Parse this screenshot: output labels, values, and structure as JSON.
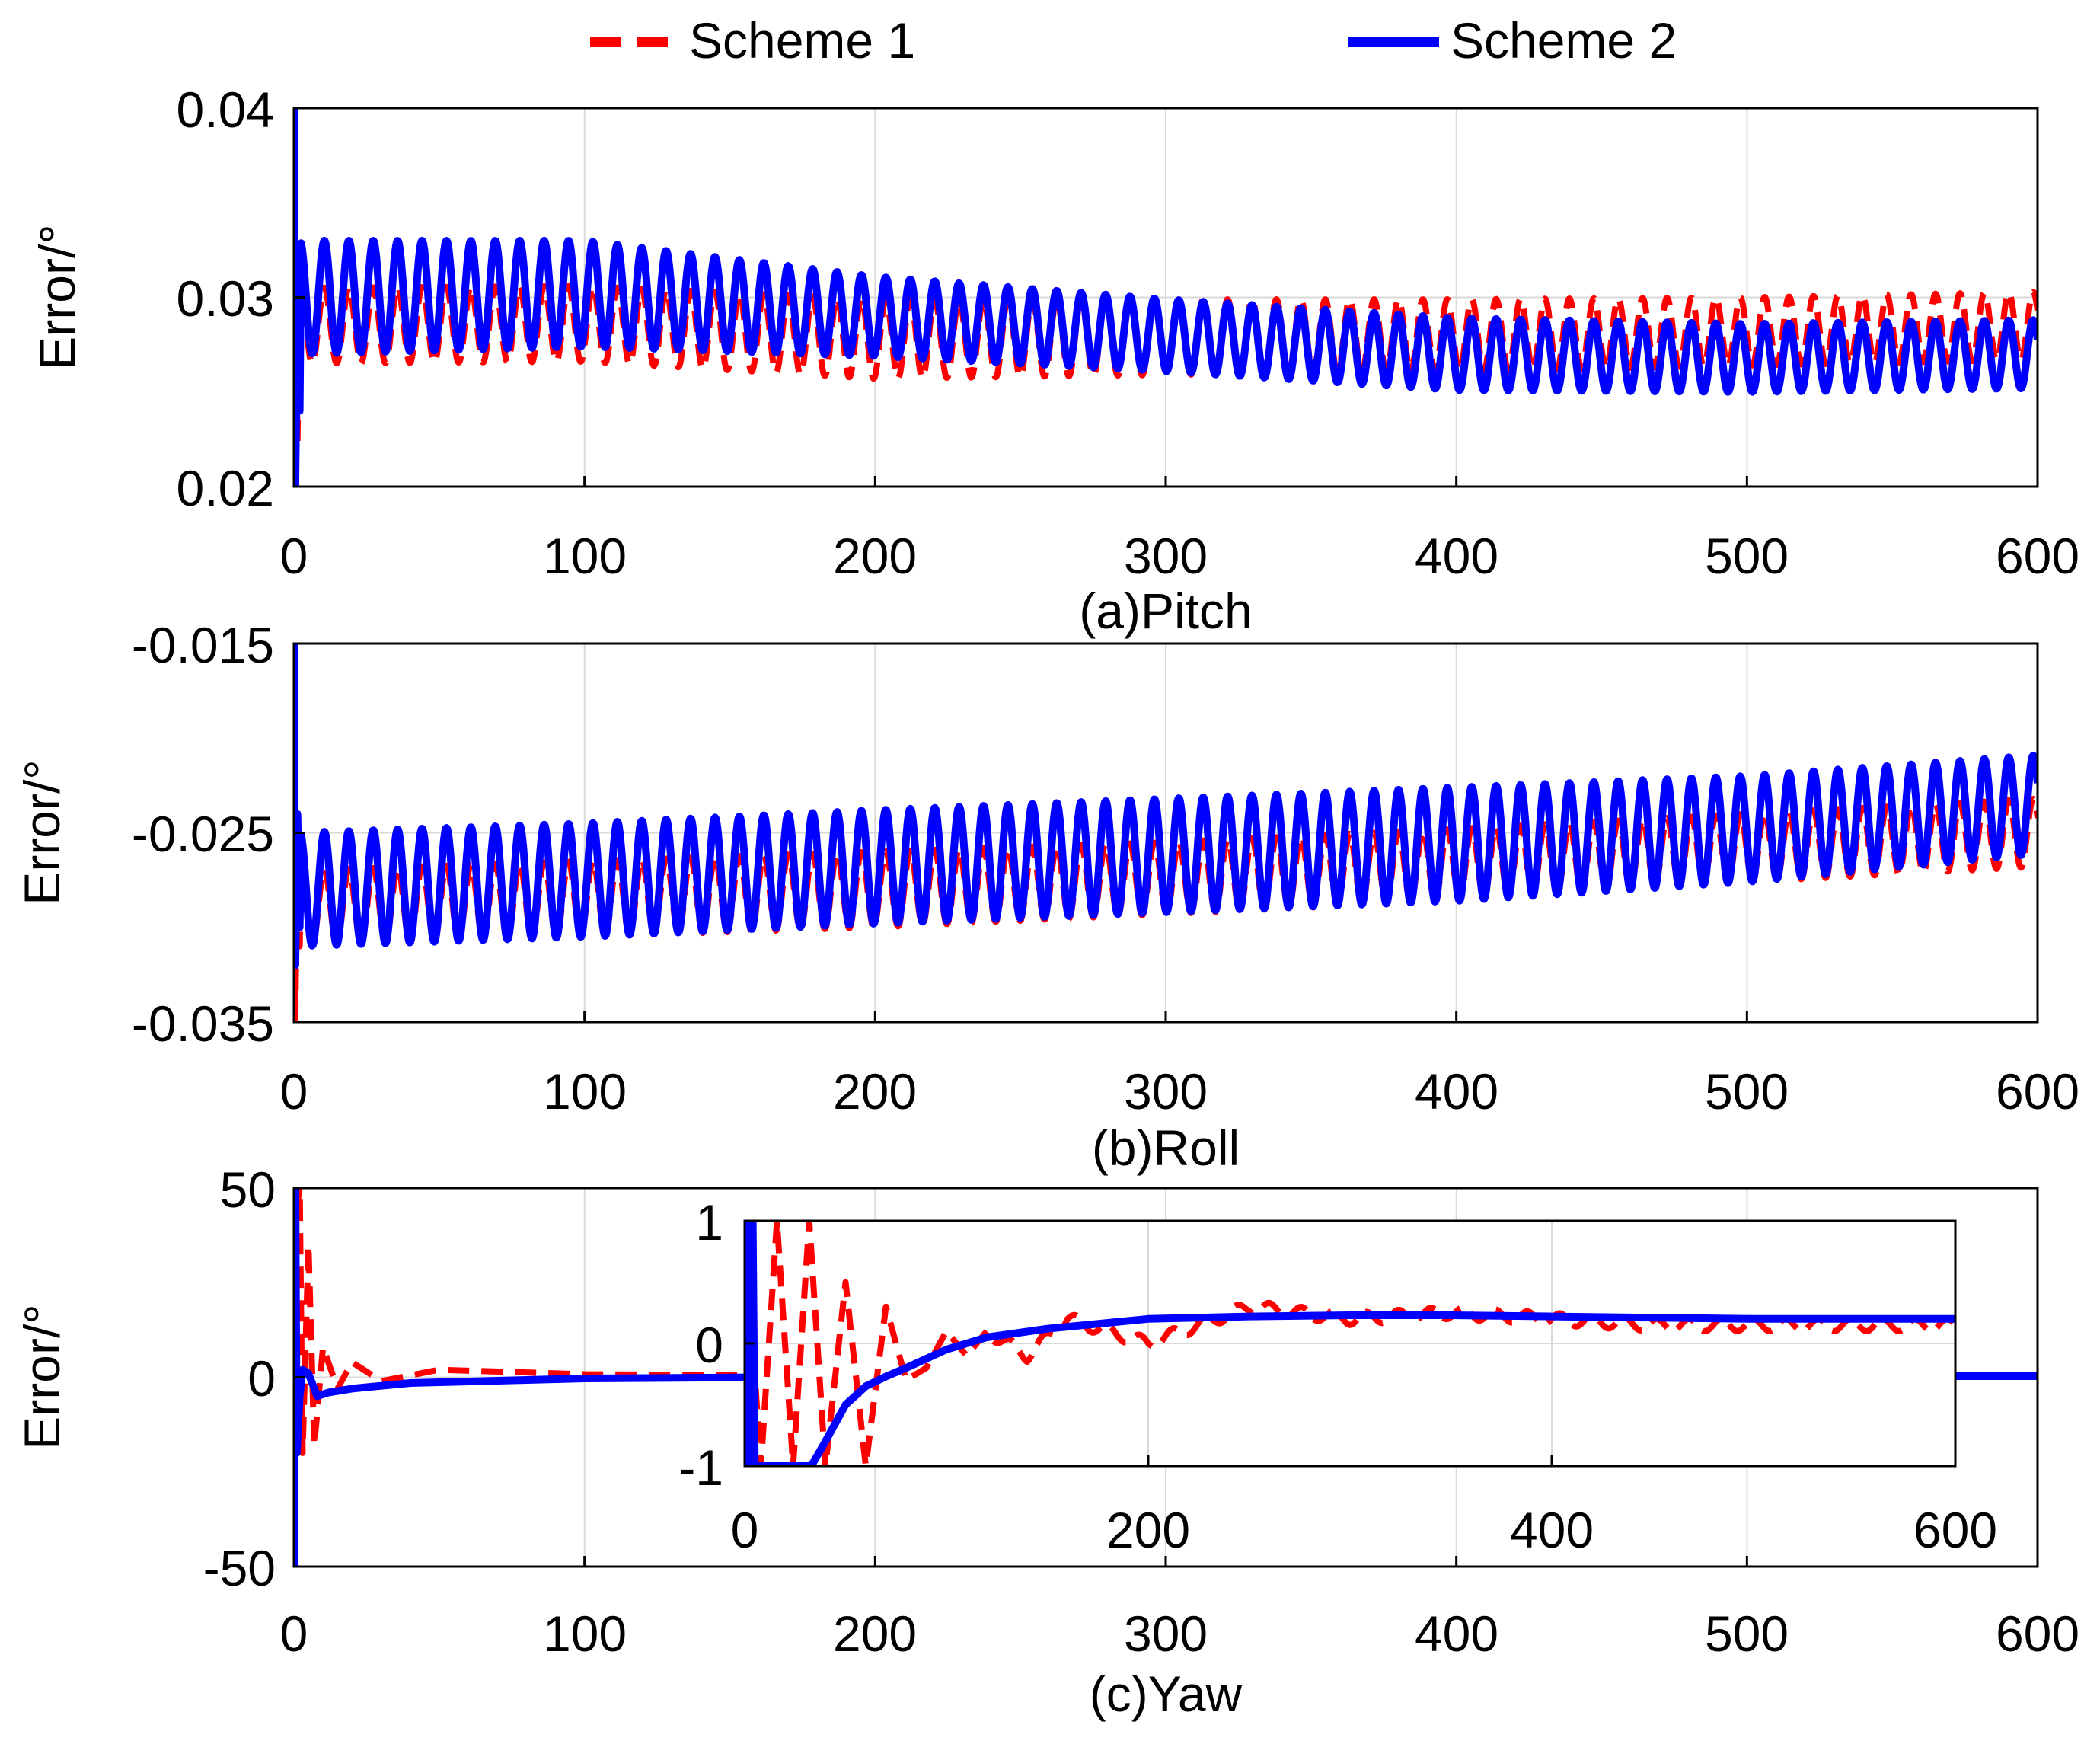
{
  "legend": [
    {
      "label": "Scheme 1",
      "color": "#ff0000",
      "style": "dashed"
    },
    {
      "label": "Scheme 2",
      "color": "#0000ff",
      "style": "solid"
    }
  ],
  "chart_data": [
    {
      "type": "line",
      "panel": "pitch",
      "title": "(a)Pitch",
      "xlabel": "",
      "ylabel": "Error/°",
      "xlim": [
        0,
        600
      ],
      "ylim": [
        0.02,
        0.04
      ],
      "xticks": [
        0,
        100,
        200,
        300,
        400,
        500,
        600
      ],
      "xtick_labels": [
        "0",
        "100",
        "200",
        "300",
        "400",
        "500",
        "600"
      ],
      "yticks": [
        0.02,
        0.03,
        0.04
      ],
      "ytick_labels": [
        "0.02",
        "0.03",
        "0.04"
      ],
      "grid": true,
      "note": "Dense oscillatory error traces; each series is summarised by its centre level and oscillation amplitude at x = 0, 100, ..., 600, plus a short initial transient.",
      "series": [
        {
          "name": "Scheme 1",
          "color": "#ff0000",
          "style": "dashed",
          "x": [
            0,
            100,
            200,
            300,
            400,
            500,
            600
          ],
          "center": [
            0.0285,
            0.0286,
            0.0278,
            0.0279,
            0.028,
            0.0282,
            0.0285
          ],
          "amplitude": [
            0.002,
            0.002,
            0.0021,
            0.002,
            0.0019,
            0.0018,
            0.0018
          ],
          "start": [
            0.021,
            0.033,
            0.0222,
            0.03
          ]
        },
        {
          "name": "Scheme 2",
          "color": "#0000ff",
          "style": "solid",
          "x": [
            0,
            100,
            200,
            300,
            400,
            500,
            600
          ],
          "center": [
            0.03,
            0.0302,
            0.029,
            0.028,
            0.027,
            0.0268,
            0.027
          ],
          "amplitude": [
            0.003,
            0.0028,
            0.0021,
            0.0019,
            0.0019,
            0.0018,
            0.0018
          ],
          "start": [
            0.04,
            0.02,
            0.03,
            0.024
          ]
        }
      ]
    },
    {
      "type": "line",
      "panel": "roll",
      "title": "(b)Roll",
      "xlabel": "",
      "ylabel": "Error/°",
      "xlim": [
        0,
        600
      ],
      "ylim": [
        -0.035,
        -0.015
      ],
      "xticks": [
        0,
        100,
        200,
        300,
        400,
        500,
        600
      ],
      "xtick_labels": [
        "0",
        "100",
        "200",
        "300",
        "400",
        "500",
        "600"
      ],
      "yticks": [
        -0.035,
        -0.025,
        -0.015
      ],
      "ytick_labels": [
        "-0.035",
        "-0.025",
        "-0.015"
      ],
      "grid": true,
      "series": [
        {
          "name": "Scheme 1",
          "color": "#ff0000",
          "style": "dashed",
          "x": [
            0,
            100,
            200,
            300,
            400,
            500,
            600
          ],
          "center": [
            -0.029,
            -0.0285,
            -0.028,
            -0.0274,
            -0.0267,
            -0.0258,
            -0.025
          ],
          "amplitude": [
            0.002,
            0.002,
            0.002,
            0.0019,
            0.0019,
            0.0018,
            0.0018
          ],
          "start": [
            -0.019,
            -0.035,
            -0.024,
            -0.031
          ]
        },
        {
          "name": "Scheme 2",
          "color": "#0000ff",
          "style": "solid",
          "x": [
            0,
            100,
            200,
            300,
            400,
            500,
            600
          ],
          "center": [
            -0.028,
            -0.0275,
            -0.0268,
            -0.0262,
            -0.0256,
            -0.0248,
            -0.0235
          ],
          "amplitude": [
            0.003,
            0.003,
            0.003,
            0.003,
            0.003,
            0.0028,
            0.0026
          ],
          "start": [
            -0.015,
            -0.032,
            -0.024,
            -0.03
          ]
        }
      ]
    },
    {
      "type": "line",
      "panel": "yaw",
      "title": "(c)Yaw",
      "xlabel": "",
      "ylabel": "Error/°",
      "xlim": [
        0,
        600
      ],
      "ylim": [
        -50,
        50
      ],
      "xticks": [
        0,
        100,
        200,
        300,
        400,
        500,
        600
      ],
      "xtick_labels": [
        "0",
        "100",
        "200",
        "300",
        "400",
        "500",
        "600"
      ],
      "yticks": [
        -50,
        0,
        50
      ],
      "ytick_labels": [
        "-50",
        "0",
        "50"
      ],
      "grid": true,
      "series": [
        {
          "name": "Scheme 1",
          "color": "#ff0000",
          "style": "dashed",
          "x": [
            0,
            1,
            2,
            3,
            5,
            7,
            10,
            15,
            20,
            30,
            50,
            100,
            150,
            200,
            300,
            400,
            500,
            600
          ],
          "y": [
            0,
            45,
            50,
            -20,
            35,
            -18,
            8,
            -3,
            4,
            -1,
            2,
            0.8,
            0.6,
            0.5,
            0.4,
            0.2,
            0.2,
            0.2
          ]
        },
        {
          "name": "Scheme 2",
          "color": "#0000ff",
          "style": "solid",
          "x": [
            0,
            0.5,
            1,
            2,
            3,
            5,
            8,
            12,
            20,
            40,
            100,
            200,
            300,
            400,
            500,
            600
          ],
          "y": [
            -50,
            50,
            -20,
            -5,
            2,
            1,
            -5,
            -4,
            -3,
            -1.5,
            -0.3,
            0.2,
            0.3,
            0.3,
            0.3,
            0.3
          ]
        }
      ],
      "inset": {
        "xlim": [
          0,
          600
        ],
        "ylim": [
          -1,
          1
        ],
        "xticks": [
          0,
          200,
          400,
          600
        ],
        "xtick_labels": [
          "0",
          "200",
          "400",
          "600"
        ],
        "yticks": [
          -1,
          0,
          1
        ],
        "ytick_labels": [
          "-1",
          "0",
          "1"
        ],
        "grid": true,
        "series": [
          {
            "name": "Scheme 1",
            "color": "#ff0000",
            "style": "dashed",
            "x": [
              0,
              8,
              16,
              24,
              32,
              40,
              50,
              60,
              70,
              80,
              90,
              100,
              110,
              120,
              140,
              160,
              200,
              250,
              300,
              350,
              400,
              450,
              500,
              550,
              600
            ],
            "y": [
              1,
              -1,
              1,
              -1,
              1,
              -1,
              0.5,
              -1,
              0.3,
              -0.3,
              -0.2,
              0.1,
              -0.1,
              0.1,
              -0.1,
              0.2,
              0.0,
              0.3,
              0.2,
              0.25,
              0.2,
              0.15,
              0.15,
              0.15,
              0.15
            ],
            "tail_oscillation": 0.05
          },
          {
            "name": "Scheme 2",
            "color": "#0000ff",
            "style": "solid",
            "x": [
              0,
              0.5,
              1,
              2,
              3,
              4,
              5,
              33,
              40,
              50,
              60,
              70,
              80,
              100,
              120,
              150,
              200,
              250,
              300,
              350,
              400,
              500,
              600
            ],
            "y": [
              -1,
              1,
              -1,
              1,
              -1,
              1,
              -1,
              -1,
              -0.8,
              -0.5,
              -0.35,
              -0.27,
              -0.2,
              -0.05,
              0.05,
              0.12,
              0.2,
              0.22,
              0.23,
              0.23,
              0.22,
              0.2,
              0.2
            ]
          }
        ]
      }
    }
  ]
}
